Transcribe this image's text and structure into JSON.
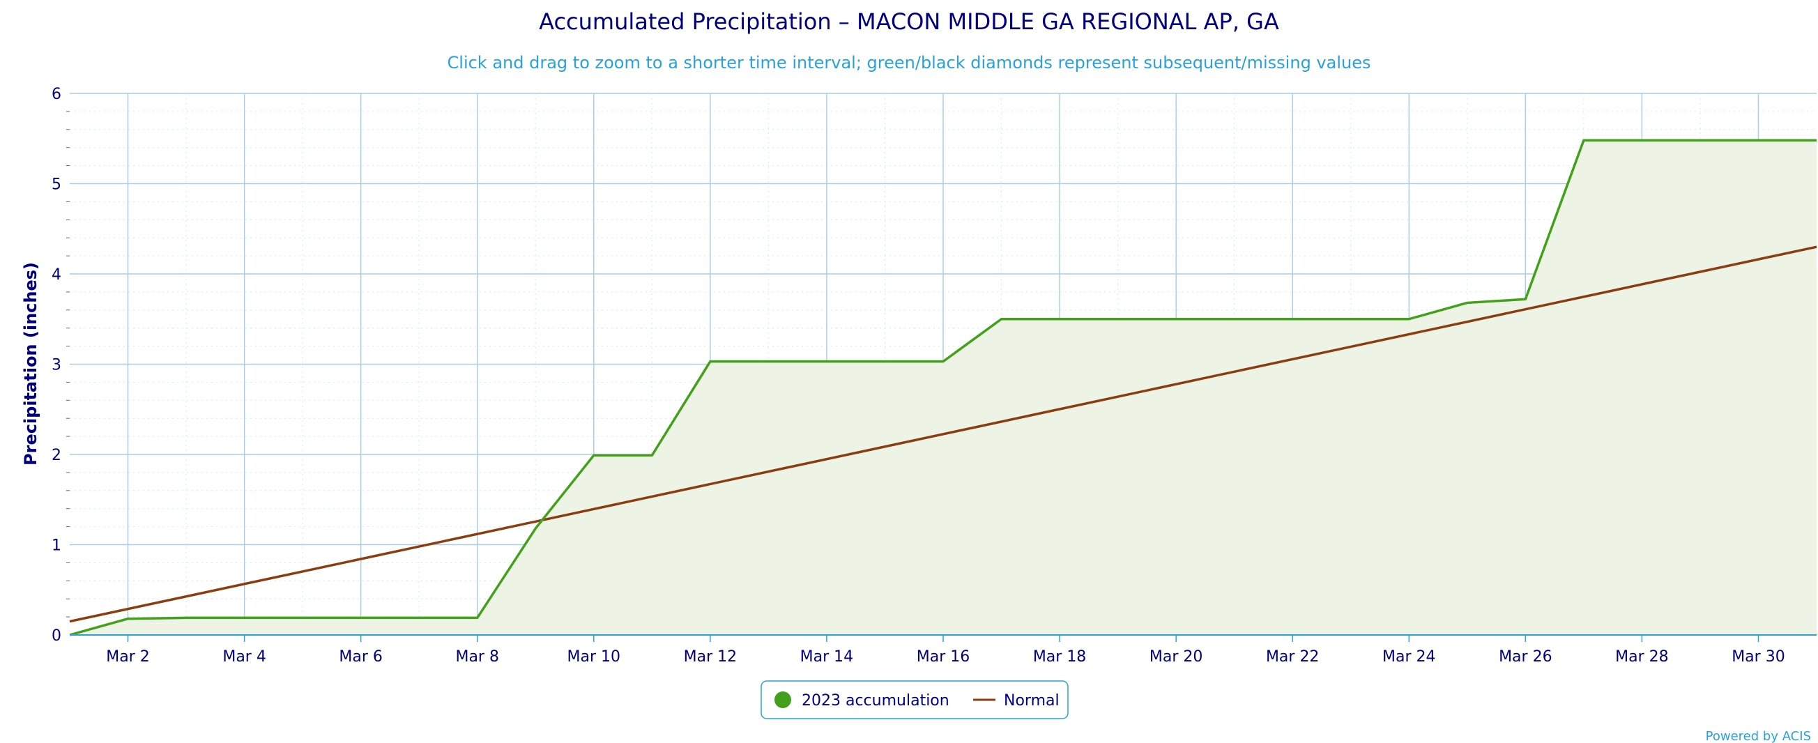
{
  "colors": {
    "title": "#000080",
    "subtitle": "#29a2dc",
    "grid_major": "#a9cfe8",
    "grid_minor": "#d6e6f0",
    "axis": "#29a2dc",
    "accumulation": "#43a01a",
    "accumulation_fill": "#edf4e6",
    "normal": "#8b3d10",
    "legend_border": "#29a2dc"
  },
  "chart_data": {
    "type": "area",
    "title": "Accumulated Precipitation – MACON MIDDLE GA REGIONAL AP, GA",
    "subtitle": "Click and drag to zoom to a shorter time interval; green/black diamonds represent subsequent/missing values",
    "xlabel": "",
    "ylabel": "Precipitation (inches)",
    "ylim": [
      0,
      6
    ],
    "yticks": [
      0,
      1,
      2,
      3,
      4,
      5,
      6
    ],
    "xlim": [
      "2023-03-01",
      "2023-03-31"
    ],
    "xticks": [
      "Mar 2",
      "Mar 4",
      "Mar 6",
      "Mar 8",
      "Mar 10",
      "Mar 12",
      "Mar 14",
      "Mar 16",
      "Mar 18",
      "Mar 20",
      "Mar 22",
      "Mar 24",
      "Mar 26",
      "Mar 28",
      "Mar 30"
    ],
    "grid": true,
    "legend_position": "bottom-center",
    "series": [
      {
        "name": "2023 accumulation",
        "type": "area",
        "x": [
          "2023-03-01",
          "2023-03-02",
          "2023-03-03",
          "2023-03-04",
          "2023-03-05",
          "2023-03-06",
          "2023-03-07",
          "2023-03-08",
          "2023-03-09",
          "2023-03-10",
          "2023-03-11",
          "2023-03-12",
          "2023-03-13",
          "2023-03-14",
          "2023-03-15",
          "2023-03-16",
          "2023-03-17",
          "2023-03-18",
          "2023-03-19",
          "2023-03-20",
          "2023-03-21",
          "2023-03-22",
          "2023-03-23",
          "2023-03-24",
          "2023-03-25",
          "2023-03-26",
          "2023-03-27",
          "2023-03-28",
          "2023-03-29",
          "2023-03-30",
          "2023-03-31"
        ],
        "values": [
          0.0,
          0.18,
          0.19,
          0.19,
          0.19,
          0.19,
          0.19,
          0.19,
          1.18,
          1.99,
          1.99,
          3.03,
          3.03,
          3.03,
          3.03,
          3.03,
          3.5,
          3.5,
          3.5,
          3.5,
          3.5,
          3.5,
          3.5,
          3.5,
          3.68,
          3.72,
          5.48,
          5.48,
          5.48,
          5.48,
          5.48
        ]
      },
      {
        "name": "Normal",
        "type": "line",
        "x": [
          "2023-03-01",
          "2023-03-31"
        ],
        "values": [
          0.15,
          4.3
        ]
      }
    ]
  },
  "footer": {
    "credit": "Powered by ACIS"
  }
}
